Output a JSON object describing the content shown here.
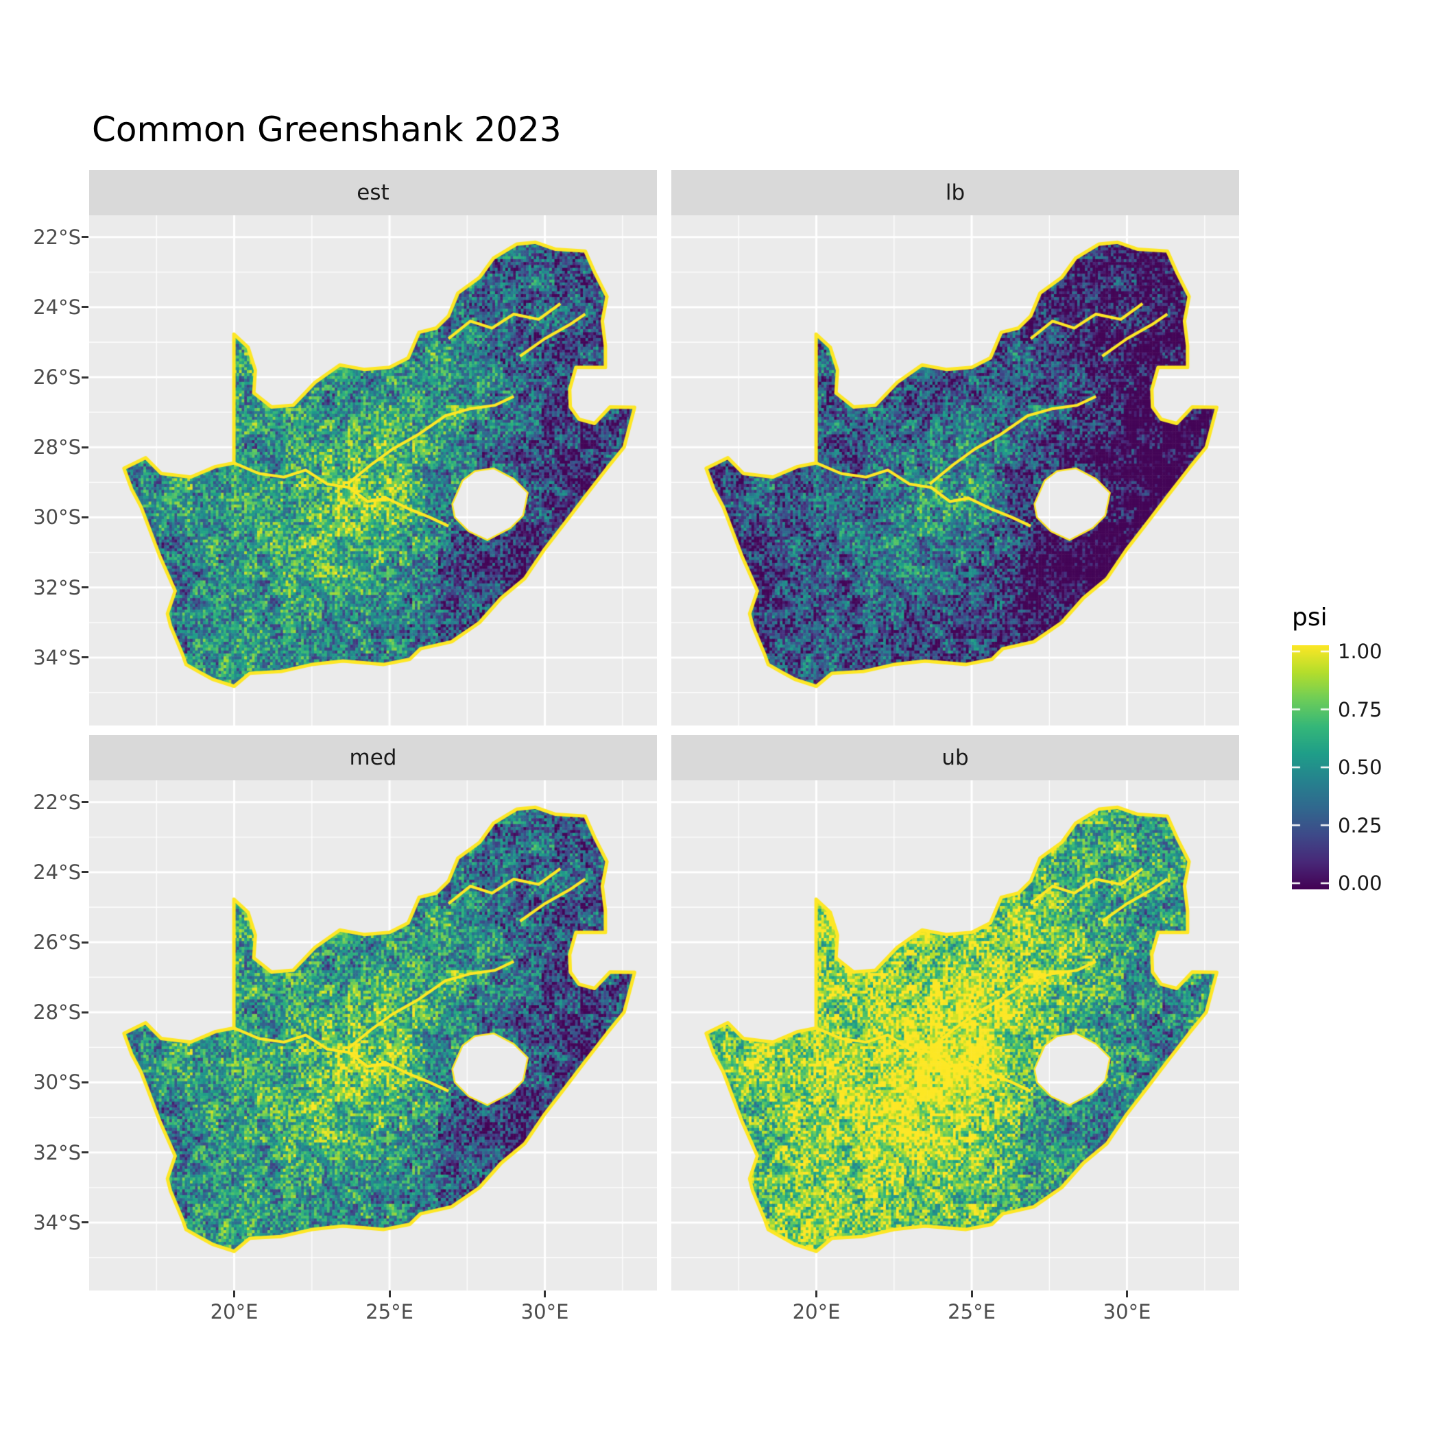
{
  "title": "Common Greenshank 2023",
  "facets": [
    {
      "id": "est",
      "label": "est",
      "delta": 0.0
    },
    {
      "id": "lb",
      "label": "lb",
      "delta": -0.24
    },
    {
      "id": "med",
      "label": "med",
      "delta": 0.03
    },
    {
      "id": "ub",
      "label": "ub",
      "delta": 0.3
    }
  ],
  "axes": {
    "x_ticks": [
      {
        "lon": 20,
        "label": "20°E"
      },
      {
        "lon": 25,
        "label": "25°E"
      },
      {
        "lon": 30,
        "label": "30°E"
      }
    ],
    "y_ticks": [
      {
        "lat": -22,
        "label": "22°S"
      },
      {
        "lat": -24,
        "label": "24°S"
      },
      {
        "lat": -26,
        "label": "26°S"
      },
      {
        "lat": -28,
        "label": "28°S"
      },
      {
        "lat": -30,
        "label": "30°S"
      },
      {
        "lat": -32,
        "label": "32°S"
      },
      {
        "lat": -34,
        "label": "34°S"
      }
    ]
  },
  "legend": {
    "title": "psi",
    "ticks": [
      {
        "v": 1.0,
        "label": "1.00"
      },
      {
        "v": 0.75,
        "label": "0.75"
      },
      {
        "v": 0.5,
        "label": "0.50"
      },
      {
        "v": 0.25,
        "label": "0.25"
      },
      {
        "v": 0.0,
        "label": "0.00"
      }
    ]
  },
  "colors": {
    "panel_bg": "#EBEBEB",
    "strip_bg": "#D9D9D9",
    "grid_major": "#FFFFFF",
    "grid_minor": "#FFFFFF",
    "tick_label": "#4D4D4D",
    "tick_mark": "#333333",
    "title_text": "#000000",
    "viridis": [
      [
        68,
        1,
        84
      ],
      [
        72,
        40,
        120
      ],
      [
        62,
        74,
        137
      ],
      [
        49,
        104,
        142
      ],
      [
        38,
        130,
        142
      ],
      [
        31,
        158,
        137
      ],
      [
        53,
        183,
        121
      ],
      [
        109,
        205,
        89
      ],
      [
        180,
        222,
        44
      ],
      [
        253,
        231,
        37
      ]
    ]
  },
  "chart_data": {
    "type": "heatmap",
    "title": "Common Greenshank 2023",
    "facets": [
      "est",
      "lb",
      "med",
      "ub"
    ],
    "fill_variable": "psi",
    "fill_range": [
      0,
      1
    ],
    "x_axis": {
      "label": "",
      "ticks_lon": [
        20,
        25,
        30
      ],
      "range_lon": [
        15.33,
        33.61
      ]
    },
    "y_axis": {
      "label": "",
      "ticks_lat": [
        -22,
        -24,
        -26,
        -28,
        -30,
        -32,
        -34
      ],
      "range_lat": [
        -35.94,
        -21.38
      ]
    },
    "legend_position": "right",
    "grid": true,
    "region": "South Africa (Lesotho and Eswatini shown as holes), pentad occupancy raster",
    "values_approximate": true,
    "facet_offsets": {
      "est": 0.0,
      "lb": -0.24,
      "med": 0.03,
      "ub": 0.3
    },
    "base_grid": {
      "lon0": 16,
      "dlon": 1,
      "ncols": 18,
      "lat0": -22,
      "dlat": -1,
      "nrows": 14,
      "values": [
        [
          0.5,
          0.5,
          0.5,
          0.5,
          0.5,
          0.5,
          0.45,
          0.45,
          0.4,
          0.4,
          0.4,
          0.35,
          0.32,
          0.35,
          0.3,
          0.3,
          0.3,
          0.3
        ],
        [
          0.5,
          0.5,
          0.5,
          0.5,
          0.5,
          0.5,
          0.45,
          0.45,
          0.4,
          0.42,
          0.45,
          0.4,
          0.35,
          0.3,
          0.35,
          0.3,
          0.3,
          0.3
        ],
        [
          0.5,
          0.5,
          0.5,
          0.5,
          0.52,
          0.5,
          0.45,
          0.45,
          0.45,
          0.4,
          0.5,
          0.4,
          0.35,
          0.3,
          0.3,
          0.25,
          0.3,
          0.3
        ],
        [
          0.5,
          0.5,
          0.5,
          0.52,
          0.55,
          0.55,
          0.5,
          0.45,
          0.45,
          0.45,
          0.5,
          0.45,
          0.4,
          0.3,
          0.25,
          0.25,
          0.25,
          0.25
        ],
        [
          0.5,
          0.5,
          0.5,
          0.5,
          0.55,
          0.55,
          0.5,
          0.5,
          0.45,
          0.5,
          0.55,
          0.6,
          0.45,
          0.35,
          0.25,
          0.2,
          0.2,
          0.2
        ],
        [
          0.45,
          0.45,
          0.5,
          0.5,
          0.55,
          0.5,
          0.5,
          0.5,
          0.5,
          0.55,
          0.6,
          0.55,
          0.45,
          0.3,
          0.2,
          0.2,
          0.2,
          0.2
        ],
        [
          0.45,
          0.5,
          0.5,
          0.5,
          0.5,
          0.5,
          0.55,
          0.6,
          0.65,
          0.7,
          0.65,
          0.5,
          0.35,
          0.25,
          0.2,
          0.15,
          0.2,
          0.2
        ],
        [
          0.4,
          0.45,
          0.5,
          0.55,
          0.5,
          0.5,
          0.6,
          0.7,
          0.75,
          0.75,
          0.6,
          0.45,
          0.35,
          0.2,
          0.15,
          0.15,
          0.2,
          0.2
        ],
        [
          0.4,
          0.45,
          0.5,
          0.6,
          0.6,
          0.55,
          0.6,
          0.7,
          0.75,
          0.7,
          0.6,
          0.4,
          0.3,
          0.2,
          0.15,
          0.15,
          0.15,
          0.15
        ],
        [
          0.35,
          0.4,
          0.45,
          0.5,
          0.55,
          0.55,
          0.6,
          0.65,
          0.7,
          0.6,
          0.45,
          0.3,
          0.2,
          0.15,
          0.15,
          0.15,
          0.15,
          0.15
        ],
        [
          0.3,
          0.35,
          0.4,
          0.45,
          0.5,
          0.5,
          0.55,
          0.6,
          0.6,
          0.5,
          0.4,
          0.3,
          0.2,
          0.15,
          0.15,
          0.15,
          0.15,
          0.15
        ],
        [
          0.3,
          0.35,
          0.4,
          0.45,
          0.6,
          0.5,
          0.5,
          0.55,
          0.5,
          0.45,
          0.35,
          0.25,
          0.2,
          0.15,
          0.15,
          0.15,
          0.15,
          0.15
        ],
        [
          0.35,
          0.4,
          0.45,
          0.5,
          0.55,
          0.5,
          0.45,
          0.5,
          0.45,
          0.4,
          0.35,
          0.3,
          0.25,
          0.2,
          0.2,
          0.2,
          0.2,
          0.2
        ],
        [
          0.35,
          0.4,
          0.45,
          0.5,
          0.55,
          0.5,
          0.45,
          0.5,
          0.45,
          0.4,
          0.35,
          0.3,
          0.25,
          0.2,
          0.2,
          0.2,
          0.2,
          0.2
        ]
      ]
    },
    "boundary_lonlat": [
      [
        16.45,
        -28.6
      ],
      [
        17.15,
        -28.3
      ],
      [
        17.65,
        -28.75
      ],
      [
        18.6,
        -28.85
      ],
      [
        19.4,
        -28.55
      ],
      [
        19.99,
        -28.45
      ],
      [
        19.99,
        -24.77
      ],
      [
        20.45,
        -25.15
      ],
      [
        20.68,
        -25.8
      ],
      [
        20.63,
        -26.45
      ],
      [
        21.2,
        -26.85
      ],
      [
        21.9,
        -26.8
      ],
      [
        22.6,
        -26.15
      ],
      [
        23.4,
        -25.65
      ],
      [
        24.2,
        -25.78
      ],
      [
        25.0,
        -25.72
      ],
      [
        25.6,
        -25.45
      ],
      [
        25.95,
        -24.72
      ],
      [
        26.5,
        -24.6
      ],
      [
        26.9,
        -24.25
      ],
      [
        27.2,
        -23.6
      ],
      [
        27.9,
        -23.15
      ],
      [
        28.35,
        -22.6
      ],
      [
        29.1,
        -22.2
      ],
      [
        29.7,
        -22.15
      ],
      [
        30.35,
        -22.35
      ],
      [
        31.3,
        -22.4
      ],
      [
        31.6,
        -23.0
      ],
      [
        32.0,
        -23.7
      ],
      [
        31.85,
        -24.4
      ],
      [
        31.95,
        -25.1
      ],
      [
        31.95,
        -25.72
      ],
      [
        31.0,
        -25.72
      ],
      [
        30.8,
        -26.35
      ],
      [
        30.82,
        -26.85
      ],
      [
        31.1,
        -27.2
      ],
      [
        31.6,
        -27.32
      ],
      [
        32.1,
        -26.85
      ],
      [
        32.89,
        -26.86
      ],
      [
        32.55,
        -28.0
      ],
      [
        32.0,
        -28.6
      ],
      [
        31.3,
        -29.4
      ],
      [
        30.7,
        -30.1
      ],
      [
        30.0,
        -30.9
      ],
      [
        29.35,
        -31.75
      ],
      [
        28.6,
        -32.3
      ],
      [
        27.9,
        -33.0
      ],
      [
        27.0,
        -33.55
      ],
      [
        26.0,
        -33.75
      ],
      [
        25.65,
        -34.05
      ],
      [
        24.8,
        -34.2
      ],
      [
        23.5,
        -34.1
      ],
      [
        22.5,
        -34.2
      ],
      [
        21.5,
        -34.4
      ],
      [
        20.5,
        -34.45
      ],
      [
        20.0,
        -34.82
      ],
      [
        19.3,
        -34.62
      ],
      [
        18.85,
        -34.4
      ],
      [
        18.45,
        -34.2
      ],
      [
        18.33,
        -33.9
      ],
      [
        17.95,
        -33.1
      ],
      [
        17.85,
        -32.75
      ],
      [
        18.1,
        -32.1
      ],
      [
        17.6,
        -31.1
      ],
      [
        17.0,
        -29.7
      ],
      [
        16.7,
        -29.2
      ]
    ],
    "lesotho_hole_lonlat": [
      [
        27.02,
        -29.62
      ],
      [
        27.35,
        -28.95
      ],
      [
        27.75,
        -28.68
      ],
      [
        28.35,
        -28.6
      ],
      [
        29.0,
        -28.9
      ],
      [
        29.45,
        -29.3
      ],
      [
        29.3,
        -29.95
      ],
      [
        28.9,
        -30.3
      ],
      [
        28.15,
        -30.65
      ],
      [
        27.55,
        -30.4
      ],
      [
        27.1,
        -30.0
      ]
    ],
    "rivers_lonlat": [
      [
        [
          20.0,
          -28.45
        ],
        [
          20.8,
          -28.75
        ],
        [
          21.6,
          -28.85
        ],
        [
          22.3,
          -28.65
        ],
        [
          23.0,
          -29.05
        ],
        [
          23.7,
          -29.15
        ],
        [
          24.3,
          -29.55
        ],
        [
          24.9,
          -29.45
        ],
        [
          25.6,
          -29.75
        ],
        [
          26.3,
          -30.0
        ],
        [
          26.9,
          -30.25
        ]
      ],
      [
        [
          23.65,
          -29.05
        ],
        [
          24.4,
          -28.5
        ],
        [
          25.1,
          -28.05
        ],
        [
          25.9,
          -27.65
        ],
        [
          26.8,
          -27.1
        ],
        [
          27.6,
          -26.9
        ],
        [
          28.4,
          -26.8
        ],
        [
          29.0,
          -26.55
        ]
      ],
      [
        [
          26.9,
          -24.9
        ],
        [
          27.6,
          -24.4
        ],
        [
          28.3,
          -24.6
        ],
        [
          29.0,
          -24.2
        ],
        [
          29.8,
          -24.35
        ],
        [
          30.5,
          -23.9
        ]
      ],
      [
        [
          29.2,
          -25.4
        ],
        [
          30.0,
          -24.9
        ],
        [
          30.8,
          -24.5
        ],
        [
          31.3,
          -24.2
        ]
      ]
    ]
  }
}
